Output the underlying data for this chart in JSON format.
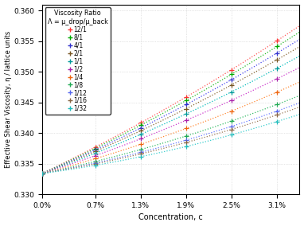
{
  "xlabel": "Concentration, c",
  "ylabel": "Effective Shear Viscosity, η / lattice units",
  "xlim": [
    0.0,
    0.034
  ],
  "ylim": [
    0.33,
    0.361
  ],
  "yticks": [
    0.33,
    0.335,
    0.34,
    0.345,
    0.35,
    0.355,
    0.36
  ],
  "xticks": [
    0.0,
    0.007,
    0.013,
    0.019,
    0.025,
    0.031
  ],
  "xticklabels": [
    "0.0%",
    "0.7%",
    "1.3%",
    "1.9%",
    "2.5%",
    "3.1%"
  ],
  "eta0": 0.3334,
  "c_markers": [
    0.0,
    0.007,
    0.013,
    0.019,
    0.025,
    0.031
  ],
  "series": [
    {
      "label": "12/1",
      "A": 0.59,
      "B": 3.5,
      "line_color": "#ff5555",
      "mark_color": "#ff3333"
    },
    {
      "label": "8/1",
      "A": 0.56,
      "B": 3.5,
      "line_color": "#22bb22",
      "mark_color": "#00aa00"
    },
    {
      "label": "4/1",
      "A": 0.525,
      "B": 3.5,
      "line_color": "#4444ee",
      "mark_color": "#3333cc"
    },
    {
      "label": "2/1",
      "A": 0.49,
      "B": 3.5,
      "line_color": "#886633",
      "mark_color": "#775522"
    },
    {
      "label": "1/1",
      "A": 0.445,
      "B": 3.5,
      "line_color": "#00bbbb",
      "mark_color": "#009999"
    },
    {
      "label": "1/2",
      "A": 0.39,
      "B": 3.5,
      "line_color": "#cc33cc",
      "mark_color": "#aa22aa"
    },
    {
      "label": "1/4",
      "A": 0.32,
      "B": 3.5,
      "line_color": "#ff8833",
      "mark_color": "#ee6611"
    },
    {
      "label": "1/8",
      "A": 0.255,
      "B": 3.5,
      "line_color": "#33bb66",
      "mark_color": "#22aa55"
    },
    {
      "label": "1/12",
      "A": 0.22,
      "B": 3.5,
      "line_color": "#6677ff",
      "mark_color": "#5566ee"
    },
    {
      "label": "1/16",
      "A": 0.2,
      "B": 3.5,
      "line_color": "#997755",
      "mark_color": "#886644"
    },
    {
      "label": "1/32",
      "A": 0.165,
      "B": 3.5,
      "line_color": "#33cccc",
      "mark_color": "#22bbbb"
    }
  ],
  "legend_title1": "Viscosity Ratio",
  "legend_title2": "Λ = μ_drop/μ_back",
  "bg_color": "#ffffff",
  "grid_color": "#cccccc",
  "grid_linestyle": "dotted",
  "line_style": "dotted",
  "line_width": 0.9,
  "marker_size": 4.5,
  "marker_ew": 0.9
}
